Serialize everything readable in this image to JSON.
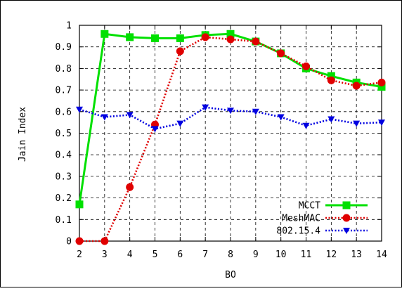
{
  "chart_data": {
    "type": "line",
    "title": "",
    "xlabel": "BO",
    "ylabel": "Jain Index",
    "x": [
      2,
      3,
      4,
      5,
      6,
      7,
      8,
      9,
      10,
      11,
      12,
      13,
      14
    ],
    "xlim": [
      2,
      14
    ],
    "ylim": [
      0,
      1
    ],
    "xticks": [
      "2",
      "3",
      "4",
      "5",
      "6",
      "7",
      "8",
      "9",
      "10",
      "11",
      "12",
      "13",
      "14"
    ],
    "yticks": [
      "0",
      "0.1",
      "0.2",
      "0.3",
      "0.4",
      "0.5",
      "0.6",
      "0.7",
      "0.8",
      "0.9",
      "1"
    ],
    "grid": true,
    "legend_position": "bottom-right",
    "series": [
      {
        "name": "MCCT",
        "color": "#00e000",
        "line_style": "solid",
        "marker": "square",
        "values": [
          0.17,
          0.96,
          0.945,
          0.94,
          0.94,
          0.955,
          0.96,
          0.925,
          0.87,
          0.8,
          0.765,
          0.735,
          0.715
        ]
      },
      {
        "name": "MeshMAC",
        "color": "#e00000",
        "line_style": "dotted",
        "marker": "circle",
        "values": [
          0.0,
          0.0,
          0.25,
          0.54,
          0.88,
          0.945,
          0.935,
          0.925,
          0.87,
          0.81,
          0.745,
          0.72,
          0.735
        ]
      },
      {
        "name": "802.15.4",
        "color": "#0000e0",
        "line_style": "dotted",
        "marker": "triangle-down",
        "values": [
          0.61,
          0.575,
          0.585,
          0.52,
          0.545,
          0.62,
          0.605,
          0.6,
          0.575,
          0.535,
          0.565,
          0.545,
          0.55
        ]
      }
    ]
  }
}
